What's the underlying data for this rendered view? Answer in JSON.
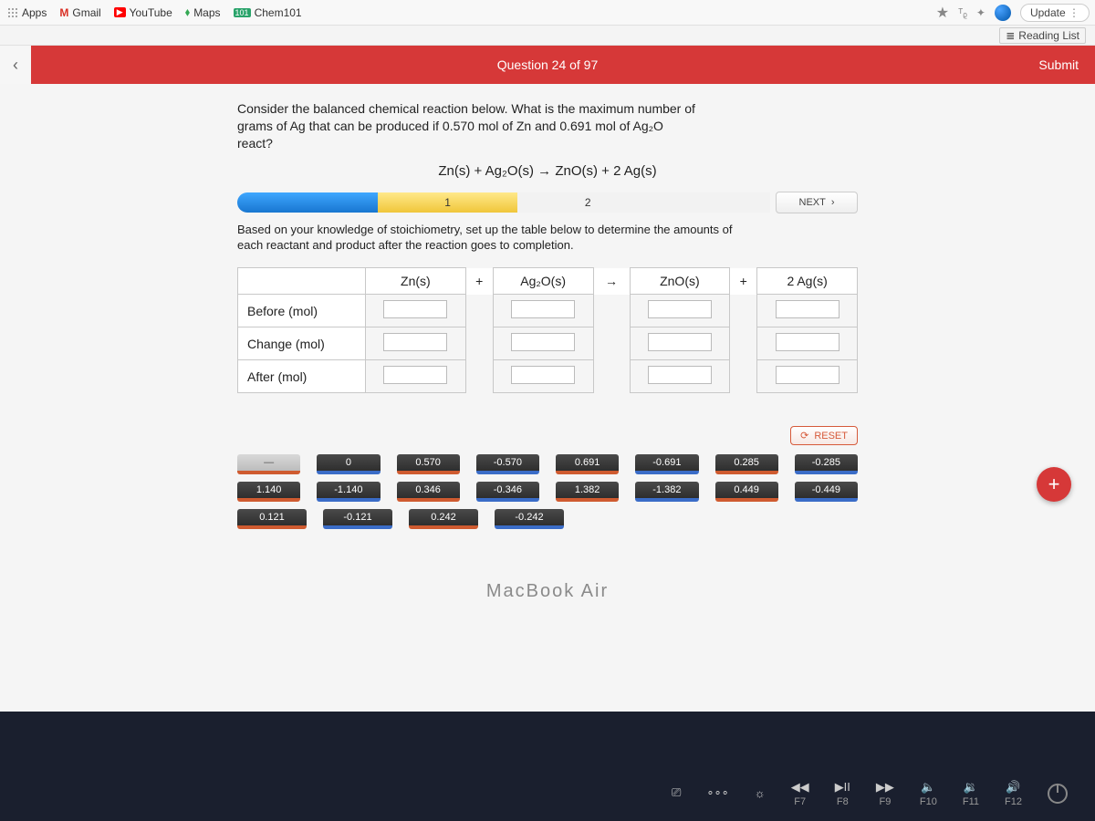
{
  "browser": {
    "bookmarks": [
      {
        "label": "Apps",
        "icon": "apps"
      },
      {
        "label": "Gmail",
        "icon": "gmail"
      },
      {
        "label": "YouTube",
        "icon": "youtube"
      },
      {
        "label": "Maps",
        "icon": "maps"
      },
      {
        "label": "Chem101",
        "icon": "chem101"
      }
    ],
    "update_label": "Update",
    "reading_list_label": "Reading List"
  },
  "header": {
    "question_counter": "Question 24 of 97",
    "submit_label": "Submit"
  },
  "question": {
    "prompt_line1": "Consider the balanced chemical reaction below. What is the maximum number of",
    "prompt_line2": "grams of Ag that can be produced if 0.570 mol of Zn and 0.691 mol of Ag₂O",
    "prompt_line3": "react?",
    "equation": "Zn(s) + Ag₂O(s) → ZnO(s) + 2 Ag(s)",
    "step1": "1",
    "step2": "2",
    "next_label": "NEXT",
    "step_text_line1": "Based on your knowledge of stoichiometry, set up the table below to determine the amounts of",
    "step_text_line2": "each reactant and product after the reaction goes to completion."
  },
  "table": {
    "col_zn": "Zn(s)",
    "col_ag2o": "Ag₂O(s)",
    "col_zno": "ZnO(s)",
    "col_ag": "2 Ag(s)",
    "plus": "+",
    "arrow": "→",
    "row_before": "Before (mol)",
    "row_change": "Change (mol)",
    "row_after": "After (mol)"
  },
  "reset_label": "RESET",
  "chips": {
    "row1": [
      "—",
      "0",
      "0.570",
      "-0.570",
      "0.691",
      "-0.691",
      "0.285",
      "-0.285"
    ],
    "row2": [
      "1.140",
      "-1.140",
      "0.346",
      "-0.346",
      "1.382",
      "-1.382",
      "0.449",
      "-0.449"
    ],
    "row3": [
      "0.121",
      "-0.121",
      "0.242",
      "-0.242"
    ]
  },
  "macbook": "MacBook Air",
  "fkeys": [
    {
      "sym": "◀◀",
      "label": "F7"
    },
    {
      "sym": "▶II",
      "label": "F8"
    },
    {
      "sym": "▶▶",
      "label": "F9"
    },
    {
      "sym": "🔈",
      "label": "F10"
    },
    {
      "sym": "🔉",
      "label": "F11"
    },
    {
      "sym": "🔊",
      "label": "F12"
    }
  ]
}
